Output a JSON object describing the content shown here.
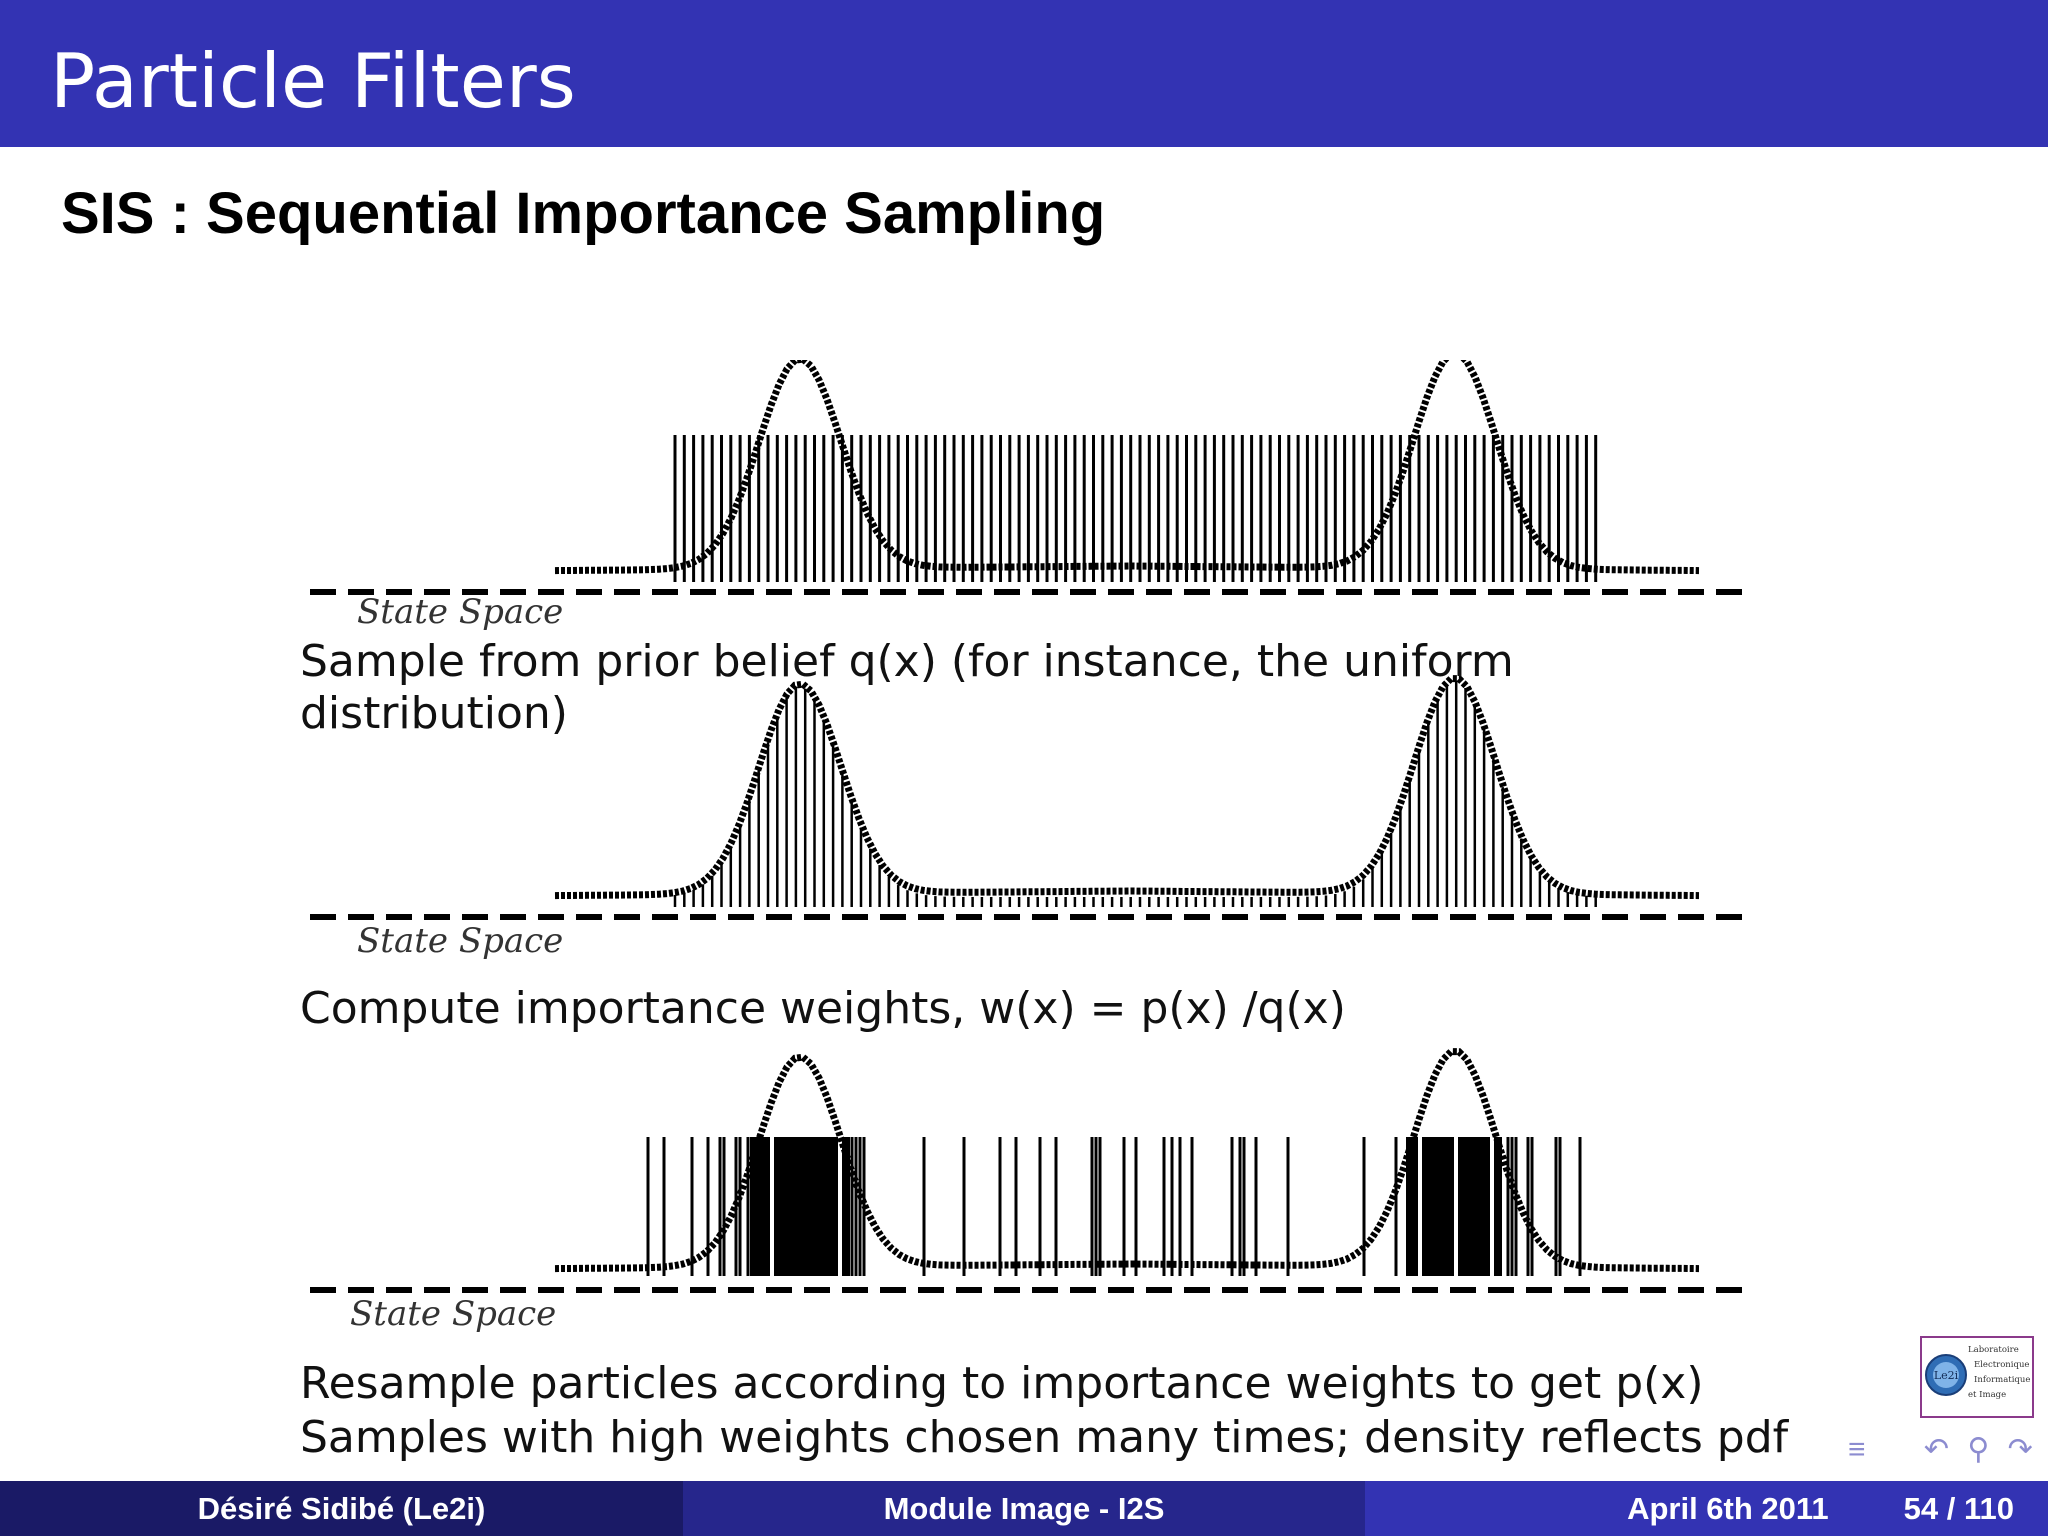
{
  "header": {
    "title": "Particle Filters"
  },
  "subtitle": "SIS : Sequential Importance Sampling",
  "panels": [
    {
      "state_space_label": "State Space",
      "caption_lines": [
        "Sample from prior belief q(x) (for instance, the uniform",
        "distribution)"
      ]
    },
    {
      "state_space_label": "State Space",
      "caption_lines": [
        "Compute importance weights, w(x) = p(x) /q(x)"
      ]
    },
    {
      "state_space_label": "State Space",
      "caption_lines": [
        "Resample particles according to importance weights to get p(x)",
        "Samples with high weights chosen many times; density reflects pdf"
      ]
    }
  ],
  "footer": {
    "author": "Désiré Sidibé  (Le2i)",
    "course": "Module Image - I2S",
    "date": "April 6th 2011",
    "page": "54 / 110"
  },
  "logo": {
    "name": "Le2i",
    "text_lines": [
      "Laboratoire",
      "Electronique",
      "Informatique",
      "et Image"
    ]
  },
  "nav_icons": [
    "align-icon",
    "undo-icon",
    "search-icon",
    "redo-icon"
  ]
}
